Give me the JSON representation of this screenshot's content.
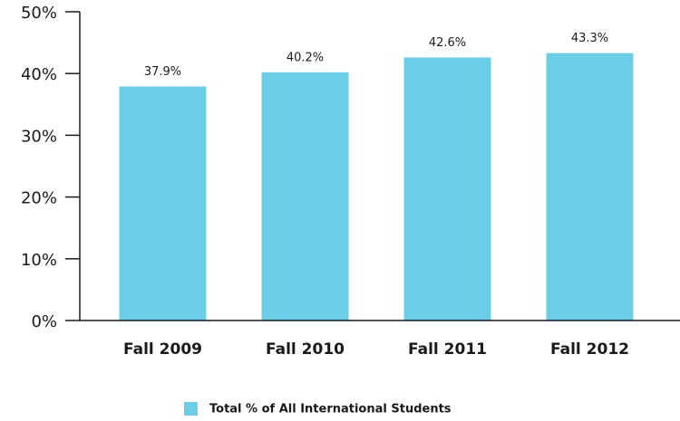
{
  "chart_data": {
    "type": "bar",
    "categories": [
      "Fall 2009",
      "Fall 2010",
      "Fall 2011",
      "Fall 2012"
    ],
    "series": [
      {
        "name": "Total % of All International Students",
        "color": "#6ccde6",
        "values": [
          37.9,
          40.2,
          42.6,
          43.3
        ],
        "value_labels": [
          "37.9%",
          "40.2%",
          "42.6%",
          "43.3%"
        ]
      }
    ],
    "ylim": [
      0,
      50
    ],
    "yticks": [
      {
        "value": 0,
        "label": "0%"
      },
      {
        "value": 10,
        "label": "10%"
      },
      {
        "value": 20,
        "label": "20%"
      },
      {
        "value": 30,
        "label": "30%"
      },
      {
        "value": 40,
        "label": "40%"
      },
      {
        "value": 50,
        "label": "50%"
      }
    ],
    "legend": "bottom"
  }
}
